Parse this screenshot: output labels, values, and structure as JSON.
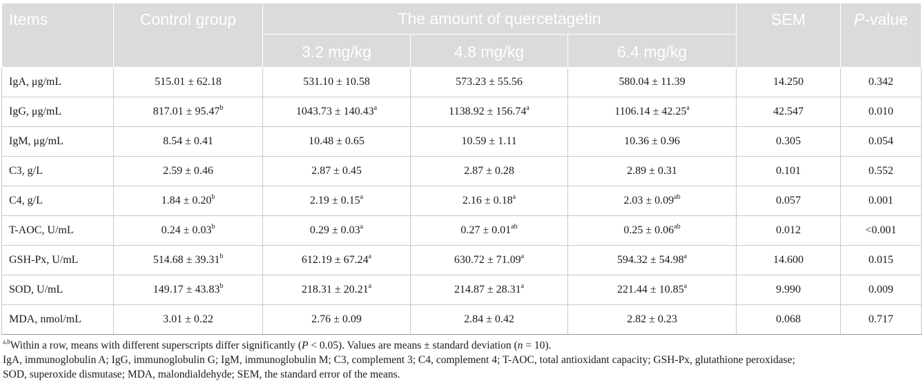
{
  "header": {
    "items": "Items",
    "control": "Control group",
    "amount": "The amount of quercetagetin",
    "doses": [
      "3.2 mg/kg",
      "4.8 mg/kg",
      "6.4 mg/kg"
    ],
    "sem": "SEM",
    "p_italic": "P",
    "p_rest": "-value"
  },
  "rows": [
    {
      "item": "IgA, μg/mL",
      "c": [
        "515.01 ± 62.18",
        ""
      ],
      "d1": [
        "531.10 ± 10.58",
        ""
      ],
      "d2": [
        "573.23 ± 55.56",
        ""
      ],
      "d3": [
        "580.04 ± 11.39",
        ""
      ],
      "sem": "14.250",
      "p": "0.342"
    },
    {
      "item": "IgG, μg/mL",
      "c": [
        "817.01 ± 95.47",
        "b"
      ],
      "d1": [
        "1043.73 ± 140.43",
        "a"
      ],
      "d2": [
        "1138.92 ± 156.74",
        "a"
      ],
      "d3": [
        "1106.14 ± 42.25",
        "a"
      ],
      "sem": "42.547",
      "p": "0.010"
    },
    {
      "item": "IgM, μg/mL",
      "c": [
        "8.54 ± 0.41",
        ""
      ],
      "d1": [
        "10.48 ± 0.65",
        ""
      ],
      "d2": [
        "10.59 ± 1.11",
        ""
      ],
      "d3": [
        "10.36 ± 0.96",
        ""
      ],
      "sem": "0.305",
      "p": "0.054"
    },
    {
      "item": "C3, g/L",
      "c": [
        "2.59 ± 0.46",
        ""
      ],
      "d1": [
        "2.87 ± 0.45",
        ""
      ],
      "d2": [
        "2.87 ± 0.28",
        ""
      ],
      "d3": [
        "2.89 ± 0.31",
        ""
      ],
      "sem": "0.101",
      "p": "0.552"
    },
    {
      "item": "C4, g/L",
      "c": [
        "1.84 ± 0.20",
        "b"
      ],
      "d1": [
        "2.19 ± 0.15",
        "a"
      ],
      "d2": [
        "2.16 ± 0.18",
        "a"
      ],
      "d3": [
        "2.03 ± 0.09",
        "ab"
      ],
      "sem": "0.057",
      "p": "0.001"
    },
    {
      "item": "T-AOC, U/mL",
      "c": [
        "0.24 ± 0.03",
        "b"
      ],
      "d1": [
        "0.29 ± 0.03",
        "a"
      ],
      "d2": [
        "0.27 ± 0.01",
        "ab"
      ],
      "d3": [
        "0.25 ± 0.06",
        "ab"
      ],
      "sem": "0.012",
      "p": "<0.001"
    },
    {
      "item": "GSH-Px, U/mL",
      "c": [
        "514.68 ± 39.31",
        "b"
      ],
      "d1": [
        "612.19 ± 67.24",
        "a"
      ],
      "d2": [
        "630.72 ± 71.09",
        "a"
      ],
      "d3": [
        "594.32 ± 54.98",
        "a"
      ],
      "sem": "14.600",
      "p": "0.015"
    },
    {
      "item": "SOD, U/mL",
      "c": [
        "149.17 ± 43.83",
        "b"
      ],
      "d1": [
        "218.31 ± 20.21",
        "a"
      ],
      "d2": [
        "214.87 ± 28.31",
        "a"
      ],
      "d3": [
        "221.44 ± 10.85",
        "a"
      ],
      "sem": "9.990",
      "p": "0.009"
    },
    {
      "item": "MDA, nmol/mL",
      "c": [
        "3.01 ± 0.22",
        ""
      ],
      "d1": [
        "2.76 ± 0.09",
        ""
      ],
      "d2": [
        "2.84 ± 0.42",
        ""
      ],
      "d3": [
        "2.82 ± 0.23",
        ""
      ],
      "sem": "0.068",
      "p": "0.717"
    }
  ],
  "notes": {
    "line1_sup": "a,b",
    "line1_a": "Within a row, means with different superscripts differ significantly (",
    "line1_p": "P",
    "line1_b": " < 0.05). Values are means ± standard deviation (",
    "line1_n": "n",
    "line1_c": " = 10).",
    "line2": "IgA, immunoglobulin A; IgG, immunoglobulin G; IgM, immunoglobulin M; C3, complement 3; C4, complement 4; T-AOC, total antioxidant capacity; GSH-Px, glutathione peroxidase;",
    "line3": "SOD, superoxide dismutase; MDA, malondialdehyde; SEM, the standard error of the means."
  },
  "colors": {
    "header_bg": "#d9dbdd",
    "header_text": "#ffffff",
    "grid": "#c8c8c8"
  }
}
